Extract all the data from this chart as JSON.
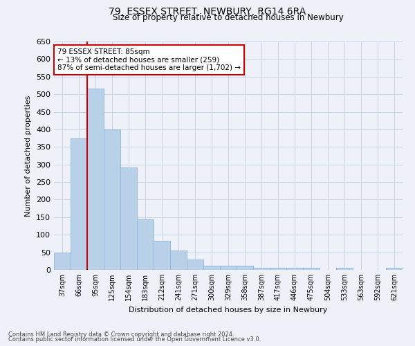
{
  "title": "79, ESSEX STREET, NEWBURY, RG14 6RA",
  "subtitle": "Size of property relative to detached houses in Newbury",
  "xlabel": "Distribution of detached houses by size in Newbury",
  "ylabel": "Number of detached properties",
  "categories": [
    "37sqm",
    "66sqm",
    "95sqm",
    "125sqm",
    "154sqm",
    "183sqm",
    "212sqm",
    "241sqm",
    "271sqm",
    "300sqm",
    "329sqm",
    "358sqm",
    "387sqm",
    "417sqm",
    "446sqm",
    "475sqm",
    "504sqm",
    "533sqm",
    "563sqm",
    "592sqm",
    "621sqm"
  ],
  "values": [
    50,
    375,
    517,
    400,
    291,
    143,
    82,
    55,
    30,
    12,
    12,
    12,
    5,
    5,
    5,
    5,
    0,
    5,
    0,
    0,
    5
  ],
  "bar_color": "#b8d0e8",
  "bar_edge_color": "#90b8d8",
  "vline_x_index": 1,
  "vline_color": "#cc0000",
  "annotation_text": "79 ESSEX STREET: 85sqm\n← 13% of detached houses are smaller (259)\n87% of semi-detached houses are larger (1,702) →",
  "annotation_box_color": "#ffffff",
  "annotation_box_edge": "#cc0000",
  "ylim": [
    0,
    650
  ],
  "yticks": [
    0,
    50,
    100,
    150,
    200,
    250,
    300,
    350,
    400,
    450,
    500,
    550,
    600,
    650
  ],
  "grid_color": "#c8d4e8",
  "footer1": "Contains HM Land Registry data © Crown copyright and database right 2024.",
  "footer2": "Contains public sector information licensed under the Open Government Licence v3.0.",
  "bg_color": "#eef2f8"
}
